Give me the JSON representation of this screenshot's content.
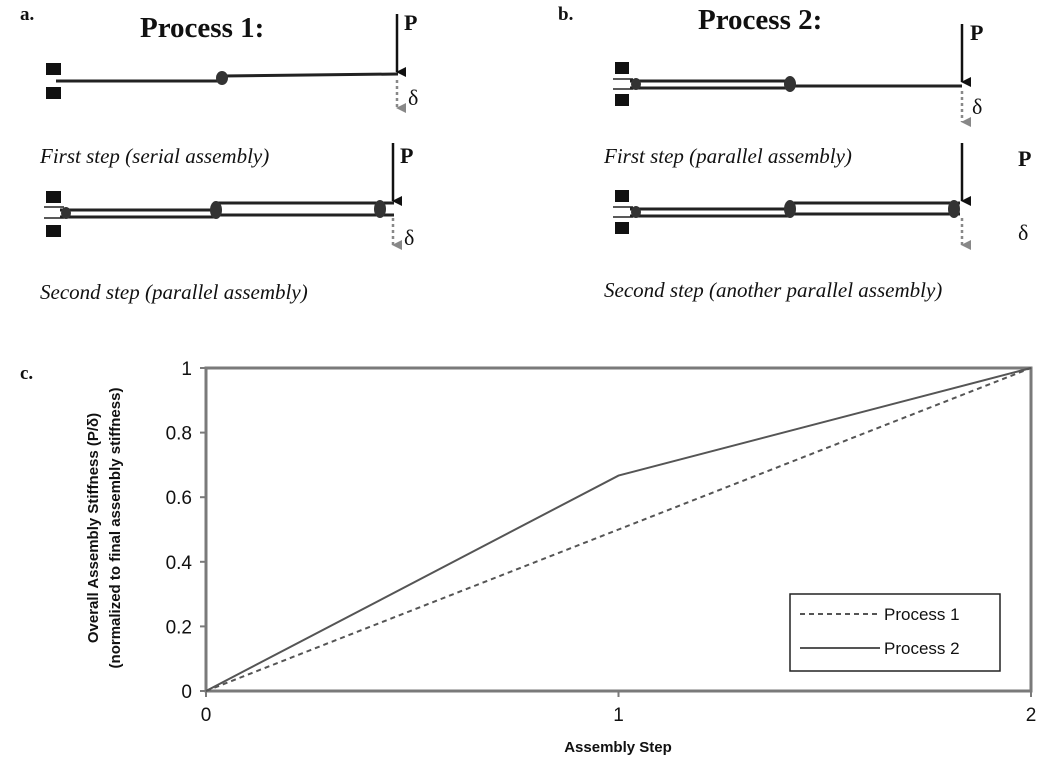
{
  "panels": {
    "a": {
      "label": "a.",
      "title": "Process 1:",
      "load_symbol": "P",
      "deflection_symbol": "δ",
      "caption_step1": "First step (serial assembly)",
      "caption_step2": "Second step (parallel assembly)"
    },
    "b": {
      "label": "b.",
      "title": "Process 2:",
      "load_symbol": "P",
      "deflection_symbol": "δ",
      "caption_step1": "First step (parallel assembly)",
      "caption_step2": "Second step (another parallel assembly)"
    },
    "c": {
      "label": "c."
    }
  },
  "chart_data": {
    "type": "line",
    "xlabel": "Assembly Step",
    "ylabel_line1": "Overall Assembly Stiffness (P/δ)",
    "ylabel_line2": "(normalized to final assembly stiffness)",
    "x": [
      0,
      1,
      2
    ],
    "xlim": [
      0,
      2
    ],
    "ylim": [
      0,
      1
    ],
    "x_ticks": [
      "0",
      "1",
      "2"
    ],
    "y_ticks": [
      "0",
      "0.2",
      "0.4",
      "0.6",
      "0.8",
      "1"
    ],
    "grid": false,
    "legend_position": "bottom-right",
    "series": [
      {
        "name": "Process 1",
        "values": [
          0,
          0.5,
          1
        ],
        "style": "dashed",
        "color": "#555555"
      },
      {
        "name": "Process 2",
        "values": [
          0,
          0.667,
          1
        ],
        "style": "solid",
        "color": "#555555"
      }
    ]
  },
  "colors": {
    "frame": "#7a7a7a",
    "beam": "#222222",
    "deflection_arrow": "#888888"
  }
}
